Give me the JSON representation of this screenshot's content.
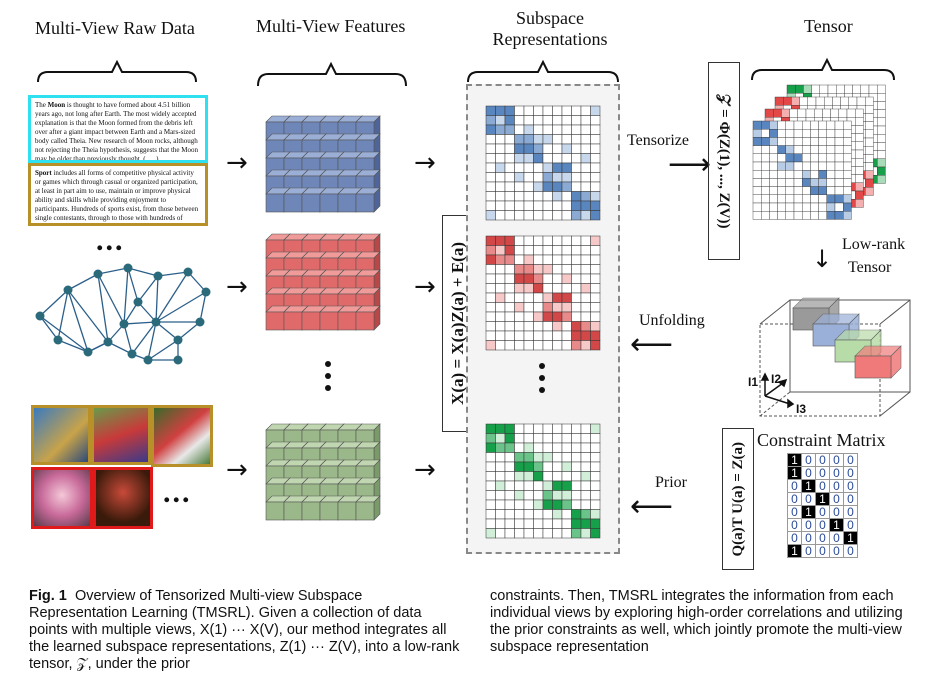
{
  "headers": {
    "raw": "Multi-View Raw Data",
    "features": "Multi-View Features",
    "subspace": "Subspace Representations",
    "tensor": "Tensor"
  },
  "raw_text": {
    "moon_bold": "Moon",
    "moon_pre": "The ",
    "moon_body": " is thought to have formed about 4.51 billion years ago, not long after Earth. The most widely accepted explanation is that the Moon formed from the debris left over after a giant impact between Earth and a Mars-sized body called Theia. New research of Moon rocks, although not rejecting the Theia hypothesis, suggests that the Moon may be older than previously thought. (......)",
    "sport_bold": "Sport",
    "sport_body": " includes all forms of competitive physical activity or games which through casual or organized participation, at least in part aim to use, maintain or improve physical ability and skills while providing enjoyment to participants. Hundreds of sports exist, from those between single contestants, through to those with hundreds of simultaneous participants, either in teams or competing. (......)"
  },
  "ellipsis": "...",
  "equations": {
    "x_eq": "X(a) = X(a)Z(a) + E(a)",
    "tensor_eq": "𝒵 = Φ(Z(1), ..., Z(V))",
    "prior_eq": "Q(a)T U(a) = Z(a)"
  },
  "labels": {
    "tensorize": "Tensorize",
    "unfolding": "Unfolding",
    "prior": "Prior",
    "low_rank": "Low-rank",
    "tensor_word": "Tensor",
    "constraint": "Constraint Matrix",
    "axis1": "I1",
    "axis2": "I2",
    "axis3": "I3"
  },
  "constraint_matrix": [
    [
      1,
      0,
      0,
      0,
      0
    ],
    [
      1,
      0,
      0,
      0,
      0
    ],
    [
      0,
      1,
      0,
      0,
      0
    ],
    [
      0,
      0,
      1,
      0,
      0
    ],
    [
      0,
      1,
      0,
      0,
      0
    ],
    [
      0,
      0,
      0,
      1,
      0
    ],
    [
      0,
      0,
      0,
      0,
      1
    ],
    [
      1,
      0,
      0,
      0,
      0
    ]
  ],
  "caption": {
    "fig": "Fig. 1",
    "left": "Overview of Tensorized Multi-view Subspace Representation Learning (TMSRL). Given a collection of data points with multiple views, X(1) ··· X(V), our method integrates all the learned subspace representations, Z(1) ··· Z(V), into a low-rank tensor, 𝒵, under the prior",
    "right": "constraints. Then, TMSRL integrates the information from each individual views by exploring high-order correlations and utilizing the prior constraints as well, which jointly promote the multi-view subspace representation"
  },
  "colors": {
    "blue": "#6f86b8",
    "red": "#e06a6a",
    "green": "#9bb88a",
    "dark_green": "#1aa34a",
    "cyan_border": "#2ee0f0",
    "gold_border": "#b8902a"
  }
}
